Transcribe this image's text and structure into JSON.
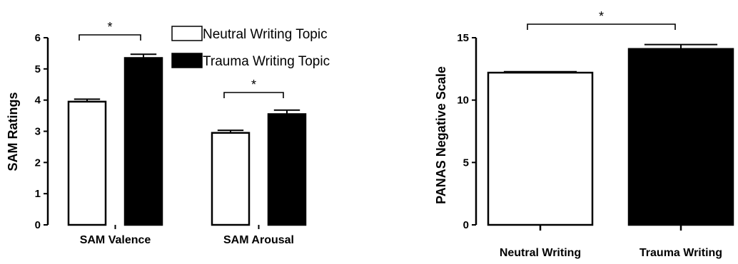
{
  "chart_data": [
    {
      "type": "bar",
      "ylabel": "SAM Ratings",
      "ylim": [
        0,
        6
      ],
      "yticks": [
        "0",
        "1",
        "2",
        "3",
        "4",
        "5",
        "6"
      ],
      "categories": [
        "SAM Valence",
        "SAM Arousal"
      ],
      "series": [
        {
          "name": "Neutral Writing Topic",
          "values": [
            3.95,
            2.95
          ],
          "errors": [
            0.08,
            0.08
          ],
          "color": "#ffffff"
        },
        {
          "name": "Trauma Writing Topic",
          "values": [
            5.35,
            3.55
          ],
          "errors": [
            0.12,
            0.13
          ],
          "color": "#000000"
        }
      ],
      "legend": {
        "placement": "top-right",
        "entries": [
          "Neutral Writing Topic",
          "Trauma Writing Topic"
        ]
      },
      "significance": [
        "*",
        "*"
      ]
    },
    {
      "type": "bar",
      "ylabel": "PANAS Negative Scale",
      "ylim": [
        0,
        15
      ],
      "yticks": [
        "0",
        "5",
        "10",
        "15"
      ],
      "categories": [
        "Neutral Writing",
        "Trauma Writing"
      ],
      "values": [
        12.2,
        14.1
      ],
      "errors": [
        0.08,
        0.35
      ],
      "colors": [
        "#ffffff",
        "#000000"
      ],
      "significance": [
        "*"
      ]
    }
  ]
}
